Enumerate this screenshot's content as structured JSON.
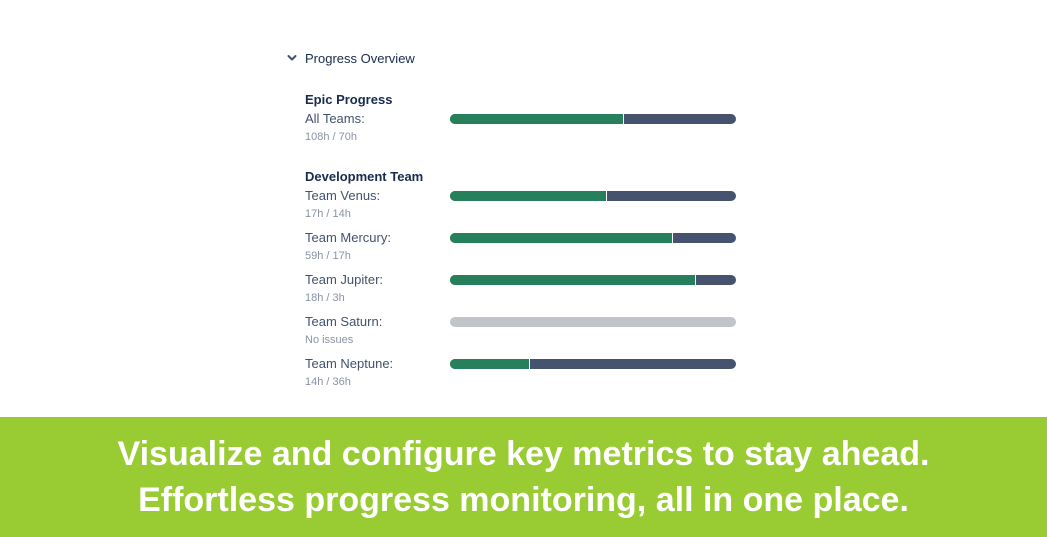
{
  "section": {
    "title": "Progress Overview",
    "toggle_icon": "chevron-down-icon"
  },
  "epic": {
    "title": "Epic Progress",
    "rows": [
      {
        "label": "All Teams:",
        "sub": "108h / 70h",
        "progress": 0.61
      }
    ]
  },
  "dev": {
    "title": "Development Team",
    "rows": [
      {
        "label": "Team Venus:",
        "sub": "17h / 14h",
        "progress": 0.55
      },
      {
        "label": "Team Mercury:",
        "sub": "59h / 17h",
        "progress": 0.78
      },
      {
        "label": "Team Jupiter:",
        "sub": "18h / 3h",
        "progress": 0.86
      },
      {
        "label": "Team Saturn:",
        "sub": "No issues",
        "progress": null
      },
      {
        "label": "Team Neptune:",
        "sub": "14h / 36h",
        "progress": 0.28
      }
    ]
  },
  "banner": {
    "line1": "Visualize and configure key metrics to stay ahead.",
    "line2": "Effortless progress monitoring, all in one place."
  },
  "colors": {
    "done": "#26805c",
    "remaining": "#45536e",
    "empty": "#c1c4c9",
    "banner": "#99cb33"
  }
}
